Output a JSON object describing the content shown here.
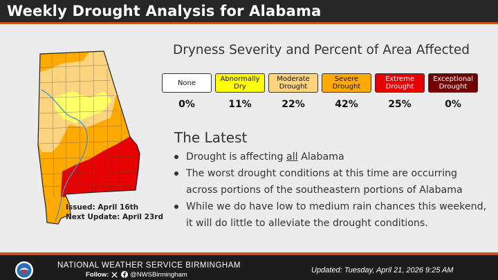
{
  "header": {
    "title": "Weekly Drought Analysis for Alabama"
  },
  "map": {
    "issued": "Issued: April 16th",
    "next_update": "Next Update: April 23rd"
  },
  "legend": {
    "heading": "Dryness Severity and Percent of Area Affected",
    "items": [
      {
        "line1": "None",
        "line2": "",
        "percent": "0%",
        "color": "#ffffff",
        "text_color": "#111111"
      },
      {
        "line1": "Abnormally",
        "line2": "Dry",
        "percent": "11%",
        "color": "#ffff00",
        "text_color": "#111111"
      },
      {
        "line1": "Moderate",
        "line2": "Drought",
        "percent": "22%",
        "color": "#fcd37f",
        "text_color": "#111111"
      },
      {
        "line1": "Severe",
        "line2": "Drought",
        "percent": "42%",
        "color": "#ffaa00",
        "text_color": "#111111"
      },
      {
        "line1": "Extreme",
        "line2": "Drought",
        "percent": "25%",
        "color": "#e60000",
        "text_color": "#ffffff"
      },
      {
        "line1": "Exceptional",
        "line2": "Drought",
        "percent": "0%",
        "color": "#730000",
        "text_color": "#ffffff"
      }
    ]
  },
  "latest": {
    "title": "The Latest",
    "bullet1_before": "Drought is affecting ",
    "bullet1_underlined": "all",
    "bullet1_after": " Alabama",
    "bullet2": "The worst drought conditions at this time are occurring across portions of the southeastern portions of Alabama",
    "bullet3": "While we do have low to medium rain chances this weekend, it will do little to alleviate the drought conditions."
  },
  "footer": {
    "org": "NATIONAL WEATHER SERVICE BIRMINGHAM",
    "follow_label": "Follow:",
    "handle": "@NWSBirmingham",
    "updated": "Updated:   Tuesday, April 21, 2026 9:25 AM",
    "x_icon": "x-icon",
    "facebook_icon": "facebook-icon"
  }
}
